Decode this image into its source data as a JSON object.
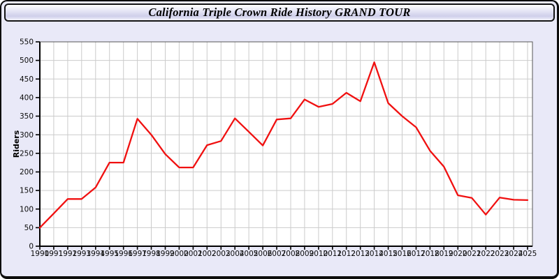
{
  "window": {
    "title": "California Triple Crown Ride History GRAND TOUR"
  },
  "colors": {
    "line": "#f01010",
    "grid": "#cbcbcb",
    "plot_bg": "#ffffff",
    "plot_border": "#555555",
    "axis": "#000000",
    "panel_bg": "#e9e9f8",
    "tick_text": "#0a0a0a"
  },
  "chart_data": {
    "type": "line",
    "title": "California Triple Crown Ride History GRAND TOUR",
    "xlabel": "",
    "ylabel": "Riders",
    "ylim": [
      0,
      550
    ],
    "ytick_step": 50,
    "yticks": [
      0,
      50,
      100,
      150,
      200,
      250,
      300,
      350,
      400,
      450,
      500,
      550
    ],
    "grid": true,
    "legend_position": "none",
    "x": [
      1990,
      1991,
      1992,
      1993,
      1994,
      1995,
      1996,
      1997,
      1998,
      1999,
      2000,
      2001,
      2002,
      2003,
      2004,
      2005,
      2006,
      2007,
      2008,
      2009,
      2010,
      2011,
      2012,
      2013,
      2014,
      2015,
      2016,
      2017,
      2018,
      2019,
      2020,
      2021,
      2022,
      2023,
      2024,
      2025
    ],
    "series": [
      {
        "name": "Riders",
        "color": "#f01010",
        "values": [
          50,
          88,
          127,
          127,
          158,
          225,
          225,
          343,
          300,
          248,
          212,
          212,
          272,
          283,
          344,
          308,
          271,
          341,
          344,
          395,
          375,
          383,
          413,
          390,
          495,
          385,
          350,
          320,
          257,
          214,
          137,
          130,
          85,
          131,
          125,
          124
        ]
      }
    ]
  }
}
